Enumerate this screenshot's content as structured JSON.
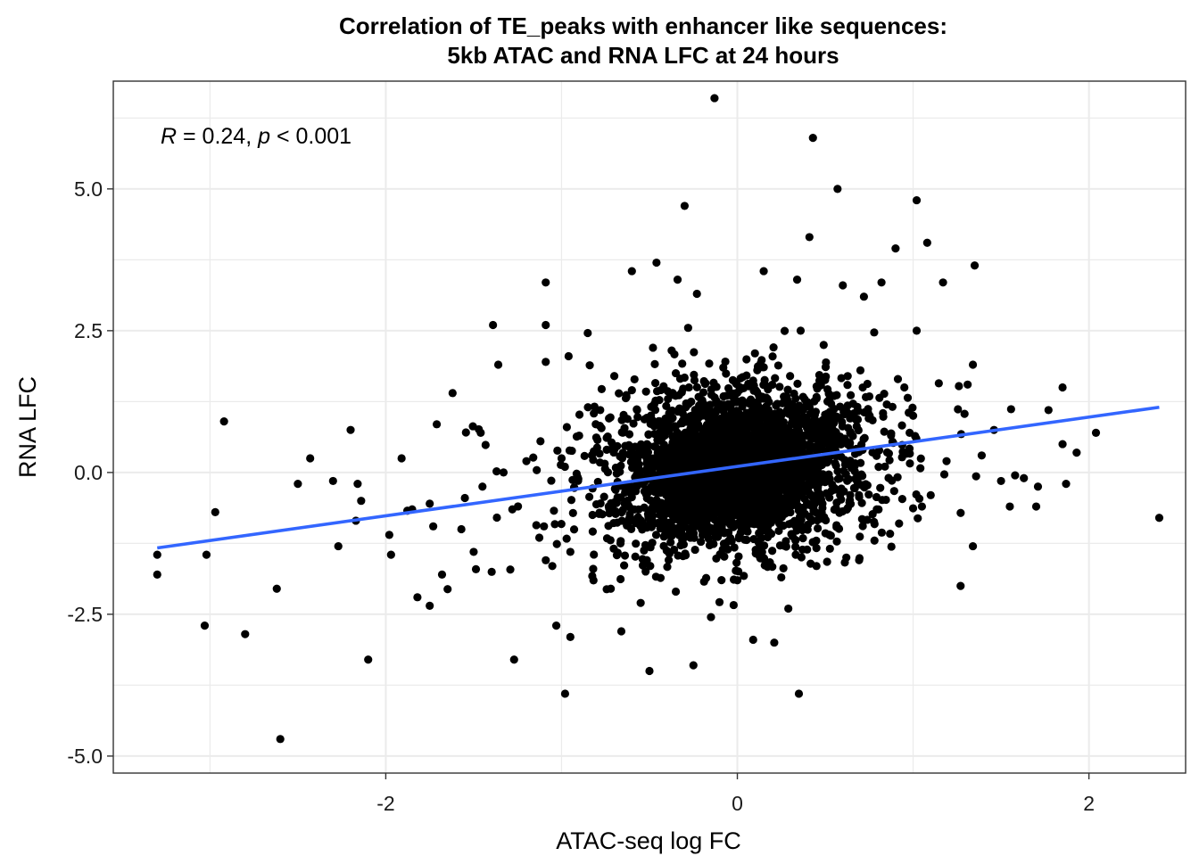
{
  "chart_data": {
    "type": "scatter",
    "title": "Correlation of TE_peaks with enhancer like sequences:",
    "subtitle": "5kb ATAC and RNA LFC at 24 hours",
    "xlabel": "ATAC-seq log FC",
    "ylabel": "RNA LFC",
    "xlim": [
      -3.55,
      2.55
    ],
    "ylim": [
      -5.3,
      6.9
    ],
    "x_ticks": [
      -2,
      0,
      2
    ],
    "x_tick_labels": [
      "-2",
      "0",
      "2"
    ],
    "y_ticks": [
      -5.0,
      -2.5,
      0.0,
      2.5,
      5.0
    ],
    "y_tick_labels": [
      "-5.0",
      "-2.5",
      "0.0",
      "2.5",
      "5.0"
    ],
    "grid": true,
    "point_color": "#000000",
    "fit_color": "#3366FF",
    "fit_line": {
      "x": [
        -3.3,
        2.4
      ],
      "y": [
        -1.33,
        1.15
      ]
    },
    "annotation": {
      "r_symbol": "R",
      "r_text": " = 0.24, ",
      "p_symbol": "p",
      "p_text": " < 0.001"
    },
    "points": [
      [
        -0.13,
        6.6
      ],
      [
        0.43,
        5.9
      ],
      [
        0.57,
        5.0
      ],
      [
        1.02,
        4.8
      ],
      [
        -0.3,
        4.7
      ],
      [
        0.41,
        4.15
      ],
      [
        1.08,
        4.05
      ],
      [
        0.9,
        3.95
      ],
      [
        -0.46,
        3.7
      ],
      [
        1.35,
        3.65
      ],
      [
        -0.6,
        3.55
      ],
      [
        0.15,
        3.55
      ],
      [
        -1.09,
        3.35
      ],
      [
        -0.34,
        3.4
      ],
      [
        0.34,
        3.4
      ],
      [
        0.6,
        3.3
      ],
      [
        0.82,
        3.35
      ],
      [
        1.17,
        3.35
      ],
      [
        0.72,
        3.1
      ],
      [
        -0.23,
        3.15
      ],
      [
        -1.39,
        2.6
      ],
      [
        -1.09,
        2.6
      ],
      [
        -0.28,
        2.55
      ],
      [
        1.02,
        2.5
      ],
      [
        0.36,
        2.5
      ],
      [
        -1.36,
        1.9
      ],
      [
        -1.09,
        1.95
      ],
      [
        -0.96,
        2.05
      ],
      [
        1.34,
        1.9
      ],
      [
        1.31,
        1.55
      ],
      [
        1.85,
        1.5
      ],
      [
        -1.62,
        1.4
      ],
      [
        1.77,
        1.1
      ],
      [
        -2.92,
        0.9
      ],
      [
        -2.2,
        0.75
      ],
      [
        -1.71,
        0.85
      ],
      [
        -1.46,
        0.7
      ],
      [
        -3.3,
        -1.45
      ],
      [
        -3.3,
        -1.8
      ],
      [
        -3.02,
        -1.45
      ],
      [
        -2.97,
        -0.7
      ],
      [
        -3.03,
        -2.7
      ],
      [
        -2.8,
        -2.85
      ],
      [
        -2.62,
        -2.05
      ],
      [
        -2.6,
        -4.7
      ],
      [
        -2.43,
        0.25
      ],
      [
        -2.5,
        -0.2
      ],
      [
        -2.3,
        -0.15
      ],
      [
        -2.27,
        -1.3
      ],
      [
        -2.16,
        -0.2
      ],
      [
        -2.14,
        -0.5
      ],
      [
        -2.17,
        -0.85
      ],
      [
        -2.1,
        -3.3
      ],
      [
        -1.98,
        -1.1
      ],
      [
        -1.97,
        -1.45
      ],
      [
        -1.91,
        0.25
      ],
      [
        -1.85,
        -0.65
      ],
      [
        -1.82,
        -2.2
      ],
      [
        -1.75,
        -2.35
      ],
      [
        -1.73,
        -0.95
      ],
      [
        -1.68,
        -1.8
      ],
      [
        -1.57,
        -1.0
      ],
      [
        -1.5,
        -1.4
      ],
      [
        -1.27,
        -3.3
      ],
      [
        -1.03,
        -2.7
      ],
      [
        -0.95,
        -2.9
      ],
      [
        -0.98,
        -3.9
      ],
      [
        -0.66,
        -2.8
      ],
      [
        -0.5,
        -3.5
      ],
      [
        -0.25,
        -3.4
      ],
      [
        0.09,
        -2.95
      ],
      [
        0.21,
        -3.0
      ],
      [
        0.35,
        -3.9
      ],
      [
        0.29,
        -2.4
      ],
      [
        -0.15,
        -2.55
      ],
      [
        1.27,
        -2.0
      ],
      [
        1.34,
        -1.3
      ],
      [
        1.55,
        -0.6
      ],
      [
        1.7,
        -0.6
      ],
      [
        1.58,
        -0.05
      ],
      [
        1.71,
        -0.25
      ],
      [
        1.87,
        -0.2
      ],
      [
        1.85,
        0.5
      ],
      [
        1.93,
        0.35
      ],
      [
        2.04,
        0.7
      ],
      [
        2.4,
        -0.8
      ],
      [
        1.5,
        -0.15
      ],
      [
        1.63,
        -0.1
      ],
      [
        1.39,
        0.3
      ],
      [
        1.46,
        0.75
      ],
      [
        1.1,
        -0.4
      ],
      [
        1.19,
        0.2
      ],
      [
        1.0,
        1.0
      ],
      [
        0.95,
        1.5
      ],
      [
        0.7,
        1.8
      ],
      [
        -0.48,
        2.2
      ],
      [
        0.1,
        2.1
      ],
      [
        -0.7,
        1.7
      ],
      [
        -0.85,
        1.15
      ],
      [
        -0.97,
        0.8
      ],
      [
        -1.12,
        0.55
      ],
      [
        -1.2,
        0.2
      ],
      [
        -1.33,
        0.0
      ],
      [
        -1.45,
        -0.25
      ],
      [
        -1.55,
        -0.45
      ],
      [
        -1.75,
        -0.55
      ],
      [
        -1.28,
        -0.65
      ],
      [
        -1.1,
        -0.95
      ],
      [
        -0.95,
        -1.4
      ],
      [
        -0.82,
        -1.7
      ],
      [
        -0.72,
        -2.05
      ],
      [
        -0.55,
        -2.3
      ],
      [
        -0.35,
        -2.1
      ],
      [
        0.0,
        -1.9
      ],
      [
        0.25,
        -1.85
      ],
      [
        0.45,
        -1.65
      ],
      [
        0.62,
        -1.5
      ],
      [
        0.78,
        -1.2
      ],
      [
        0.92,
        -0.9
      ],
      [
        1.05,
        -0.6
      ],
      [
        0.98,
        0.7
      ],
      [
        0.85,
        1.2
      ],
      [
        0.55,
        1.35
      ],
      [
        0.3,
        1.7
      ],
      [
        -0.08,
        1.85
      ],
      [
        -0.35,
        1.75
      ],
      [
        -0.6,
        1.45
      ],
      [
        -0.78,
        1.1
      ],
      [
        -0.9,
        0.65
      ],
      [
        -1.0,
        0.25
      ]
    ]
  }
}
